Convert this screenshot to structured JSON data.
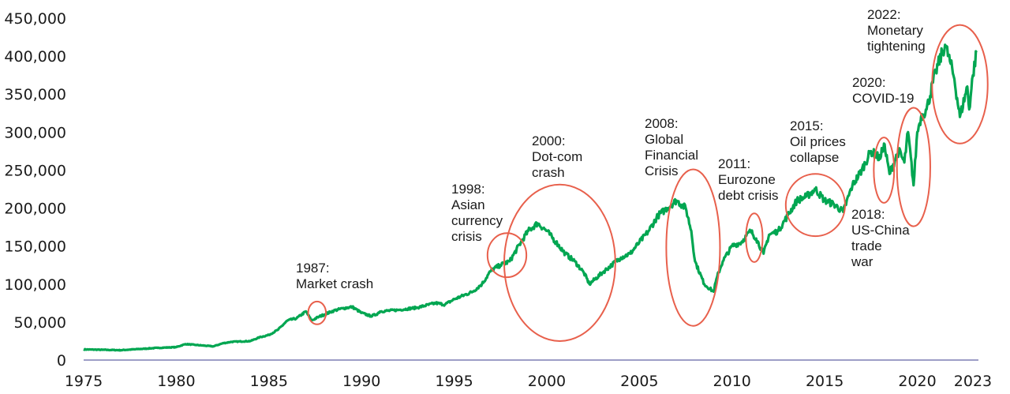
{
  "chart_data": {
    "type": "line",
    "title": "",
    "xlabel": "",
    "ylabel": "",
    "xlim": [
      1975,
      2023.3
    ],
    "ylim": [
      0,
      450000
    ],
    "grid": false,
    "x_ticks": [
      "1975",
      "1980",
      "1985",
      "1990",
      "1995",
      "2000",
      "2005",
      "2010",
      "2015",
      "2020",
      "2023"
    ],
    "y_ticks": [
      "0",
      "50,000",
      "100,000",
      "150,000",
      "200,000",
      "250,000",
      "300,000",
      "350,000",
      "400,000",
      "450,000"
    ],
    "colors": {
      "line": "#00a651",
      "circle": "#e8604c",
      "axis": "#7d7fb3"
    },
    "series": [
      {
        "x": [
          1975.0,
          1976.0,
          1977.0,
          1978.0,
          1979.0,
          1980.0,
          1980.5,
          1981.0,
          1982.0,
          1982.5,
          1983.0,
          1984.0,
          1984.5,
          1985.0,
          1985.5,
          1986.0,
          1986.5,
          1987.0,
          1987.3,
          1987.7,
          1988.0,
          1988.5,
          1989.0,
          1989.5,
          1990.0,
          1990.5,
          1990.8,
          1991.0,
          1992.0,
          1993.0,
          1994.0,
          1994.5,
          1995.0,
          1996.0,
          1996.5,
          1997.0,
          1997.5,
          1998.0,
          1998.6,
          1999.0,
          1999.5,
          2000.0,
          2000.5,
          2001.0,
          2001.5,
          2002.0,
          2002.3,
          2003.0,
          2003.5,
          2004.0,
          2004.5,
          2005.0,
          2005.5,
          2006.0,
          2006.5,
          2007.0,
          2007.5,
          2007.8,
          2008.0,
          2008.5,
          2009.0,
          2009.2,
          2009.5,
          2010.0,
          2010.5,
          2011.0,
          2011.3,
          2011.7,
          2012.0,
          2012.5,
          2013.0,
          2013.5,
          2014.0,
          2014.5,
          2015.0,
          2015.5,
          2016.0,
          2016.5,
          2017.0,
          2017.5,
          2018.0,
          2018.2,
          2018.5,
          2018.9,
          2019.0,
          2019.3,
          2019.5,
          2019.8,
          2020.0,
          2020.2,
          2020.5,
          2021.0,
          2021.5,
          2021.8,
          2022.0,
          2022.3,
          2022.7,
          2022.8,
          2023.0,
          2023.2
        ],
        "values": [
          14000,
          13500,
          13000,
          14500,
          16000,
          17000,
          21000,
          20000,
          18000,
          22000,
          24000,
          25000,
          30000,
          33000,
          40000,
          52000,
          55000,
          64000,
          52000,
          57000,
          60000,
          65000,
          68000,
          70000,
          62000,
          58000,
          60000,
          64000,
          66000,
          69000,
          75000,
          73000,
          80000,
          90000,
          100000,
          118000,
          125000,
          130000,
          155000,
          170000,
          180000,
          170000,
          155000,
          140000,
          130000,
          115000,
          100000,
          115000,
          125000,
          135000,
          140000,
          155000,
          170000,
          190000,
          200000,
          210000,
          200000,
          170000,
          130000,
          100000,
          90000,
          110000,
          130000,
          150000,
          155000,
          170000,
          160000,
          140000,
          165000,
          170000,
          190000,
          210000,
          215000,
          225000,
          210000,
          205000,
          195000,
          230000,
          250000,
          275000,
          265000,
          285000,
          245000,
          270000,
          275000,
          260000,
          300000,
          230000,
          300000,
          320000,
          330000,
          380000,
          415000,
          390000,
          370000,
          320000,
          360000,
          330000,
          375000,
          405000
        ]
      }
    ],
    "annotations": [
      {
        "lines": [
          "1987:",
          "Market crash"
        ],
        "cx": 1987.6,
        "cy": 62000,
        "rx": 0.48,
        "ry": 15000
      },
      {
        "lines": [
          "1998:",
          "Asian",
          "currency",
          "crisis"
        ],
        "cx": 1997.85,
        "cy": 138000,
        "rx": 1.05,
        "ry": 29000
      },
      {
        "lines": [
          "2000:",
          "Dot-com",
          "crash"
        ],
        "cx": 2000.7,
        "cy": 128000,
        "rx": 3.0,
        "ry": 103000
      },
      {
        "lines": [
          "2008:",
          "Global",
          "Financial",
          "Crisis"
        ],
        "cx": 2007.9,
        "cy": 148000,
        "rx": 1.45,
        "ry": 103000
      },
      {
        "lines": [
          "2011:",
          "Eurozone",
          "debt crisis"
        ],
        "cx": 2011.2,
        "cy": 161000,
        "rx": 0.45,
        "ry": 32000
      },
      {
        "lines": [
          "2015:",
          "Oil prices",
          "collapse"
        ],
        "cx": 2014.5,
        "cy": 204000,
        "rx": 1.6,
        "ry": 41000
      },
      {
        "lines": [
          "2018:",
          "US-China",
          "trade",
          "war"
        ],
        "cx": 2018.2,
        "cy": 250000,
        "rx": 0.55,
        "ry": 43000
      },
      {
        "lines": [
          "2020:",
          "COVID-19"
        ],
        "cx": 2019.8,
        "cy": 254000,
        "rx": 0.9,
        "ry": 78000
      },
      {
        "lines": [
          "2022:",
          "Monetary",
          "tightening"
        ],
        "cx": 2022.3,
        "cy": 363000,
        "rx": 1.5,
        "ry": 78000
      }
    ]
  }
}
